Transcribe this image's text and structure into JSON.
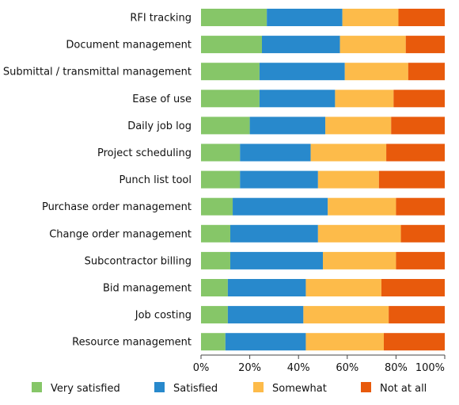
{
  "chart_data": {
    "type": "bar",
    "orientation": "horizontal",
    "stacked": true,
    "categories": [
      "RFI tracking",
      "Document management",
      "Submittal / transmittal management",
      "Ease of use",
      "Daily job log",
      "Project scheduling",
      "Punch list tool",
      "Purchase order management",
      "Change order management",
      "Subcontractor billing",
      "Bid management",
      "Job costing",
      "Resource management"
    ],
    "series": [
      {
        "name": "Very satisfied",
        "color": "#86c668",
        "values": [
          27,
          25,
          24,
          24,
          20,
          16,
          16,
          13,
          12,
          12,
          11,
          11,
          10
        ]
      },
      {
        "name": "Satisfied",
        "color": "#2889cc",
        "values": [
          31,
          32,
          35,
          31,
          31,
          29,
          32,
          39,
          36,
          38,
          32,
          31,
          33
        ]
      },
      {
        "name": "Somewhat",
        "color": "#fdbb4a",
        "values": [
          23,
          27,
          26,
          24,
          27,
          31,
          25,
          28,
          34,
          30,
          31,
          35,
          32
        ]
      },
      {
        "name": "Not at all",
        "color": "#e85a0c",
        "values": [
          19,
          16,
          15,
          21,
          22,
          24,
          27,
          20,
          18,
          20,
          26,
          23,
          25
        ]
      }
    ],
    "xlim": [
      0,
      100
    ],
    "x_ticks": [
      "0%",
      "20%",
      "40%",
      "60%",
      "80%",
      "100%"
    ],
    "title": "",
    "xlabel": "",
    "ylabel": "",
    "grid": false,
    "legend_position": "bottom"
  }
}
